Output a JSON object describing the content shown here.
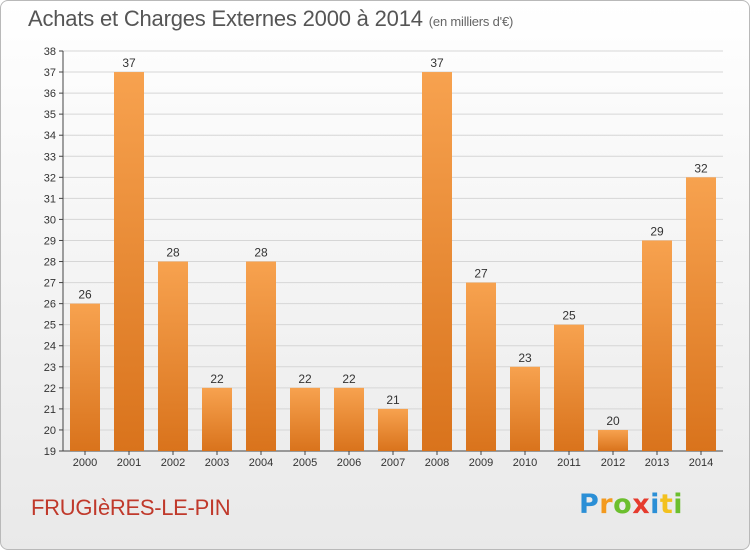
{
  "header": {
    "title": "Achats et Charges Externes 2000 à 2014",
    "unit": "(en milliers d'€)"
  },
  "footer": {
    "commune": "FRUGIèRES-LE-PIN",
    "logo_text": "Proxiti"
  },
  "colors": {
    "bar_light": "#f7a24f",
    "bar_dark": "#d9731c",
    "grid": "#d6d6d6",
    "axis": "#444444",
    "commune_text": "#c0392b"
  },
  "chart_data": {
    "type": "bar",
    "title": "Achats et Charges Externes 2000 à 2014",
    "subtitle": "(en milliers d'€)",
    "xlabel": "",
    "ylabel": "",
    "categories": [
      "2000",
      "2001",
      "2002",
      "2003",
      "2004",
      "2005",
      "2006",
      "2007",
      "2008",
      "2009",
      "2010",
      "2011",
      "2012",
      "2013",
      "2014"
    ],
    "values": [
      26,
      37,
      28,
      22,
      28,
      22,
      22,
      21,
      37,
      27,
      23,
      25,
      20,
      29,
      32
    ],
    "ylim": [
      19,
      38
    ],
    "yticks": [
      19,
      20,
      21,
      22,
      23,
      24,
      25,
      26,
      27,
      28,
      29,
      30,
      31,
      32,
      33,
      34,
      35,
      36,
      37,
      38
    ],
    "grid": true,
    "legend": "none"
  }
}
